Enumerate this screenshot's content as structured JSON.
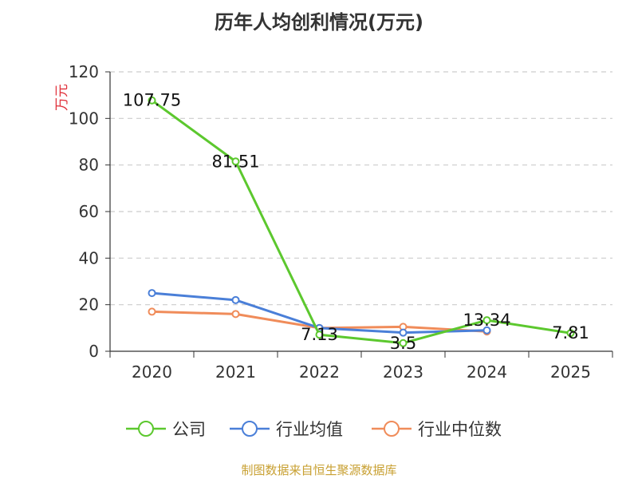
{
  "chart_data": {
    "type": "line",
    "title": "历年人均创利情况(万元)",
    "ylabel": "万元",
    "xlabel": "",
    "ylim": [
      0,
      120
    ],
    "yticks": [
      0,
      20,
      40,
      60,
      80,
      100,
      120
    ],
    "grid": true,
    "legend_position": "bottom",
    "categories": [
      "2020",
      "2021",
      "2022",
      "2023",
      "2024",
      "2025"
    ],
    "series": [
      {
        "name": "公司",
        "color": "#5cc82e",
        "values": [
          107.75,
          81.51,
          7.13,
          3.5,
          13.34,
          7.81
        ],
        "labels": [
          "107.75",
          "81.51",
          "7.13",
          "3.5",
          "13.34",
          "7.81"
        ]
      },
      {
        "name": "行业均值",
        "color": "#4a7fd8",
        "values": [
          25,
          22,
          10,
          8,
          9,
          null
        ],
        "labels": []
      },
      {
        "name": "行业中位数",
        "color": "#f08c5a",
        "values": [
          17,
          16,
          10,
          10.5,
          8.5,
          null
        ],
        "labels": []
      }
    ]
  },
  "source_text": "制图数据来自恒生聚源数据库",
  "colors": {
    "axis": "#333333",
    "grid": "#cccccc",
    "ylabel": "#e0303a",
    "source": "#c8a032"
  }
}
